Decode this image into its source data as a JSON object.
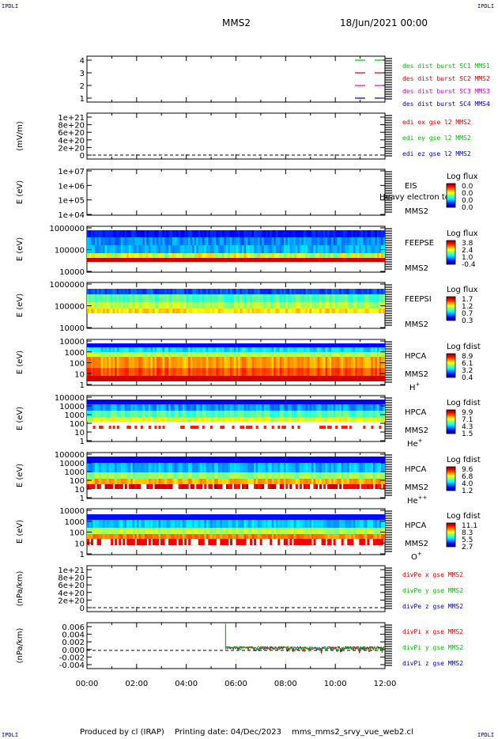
{
  "corner_tag": "IPDLI",
  "header": {
    "spacecraft": "MMS2",
    "date": "18/Jun/2021 00:00"
  },
  "footer": {
    "producer": "Produced by cl (IRAP)",
    "printing": "Printing date: 04/Dec/2023",
    "filename": "mms_mms2_srvy_vue_web2.cl"
  },
  "colors": {
    "red": "#e00000",
    "green": "#00c000",
    "blue": "#0000c0",
    "magenta": "#e000e0",
    "text_blue": "#0000aa"
  },
  "chart_data": [
    {
      "type": "line",
      "ylim": [
        0.5,
        4.5
      ],
      "ticks": [
        "1",
        "2",
        "3",
        "4"
      ],
      "series": [
        {
          "name": "des dist burst SC1 MMS1",
          "color": "#00c000",
          "y": 4
        },
        {
          "name": "des dist burst SC2 MMS2",
          "color": "#e00000",
          "y": 3
        },
        {
          "name": "des dist burst SC3 MMS3",
          "color": "#e000e0",
          "y": 2
        },
        {
          "name": "des dist burst SC4 MMS4",
          "color": "#0000c0",
          "y": 1
        }
      ]
    },
    {
      "type": "line",
      "ylabel": "(mV/m)",
      "ticks": [
        "0",
        "2e+20",
        "4e+20",
        "6e+20",
        "8e+20",
        "1e+21"
      ],
      "ylim": [
        -1e+20,
        1.05e+21
      ],
      "series": [
        {
          "name": "edi ex gse l2 MMS2",
          "color": "#e00000"
        },
        {
          "name": "edi ey gse l2 MMS2",
          "color": "#00c000"
        },
        {
          "name": "edi ez gse l2 MMS2",
          "color": "#0000c0"
        }
      ]
    },
    {
      "type": "heatmap",
      "ylabel": "E (eV)",
      "ticks": [
        "1e+04",
        "1e+05",
        "1e+06",
        "1e+07"
      ],
      "label": "EIS",
      "label_extra": "Heavy electron to",
      "sc": "MMS2",
      "colorbar": {
        "title": "Log flux",
        "ticks": [
          "0.0",
          "0.0",
          "0.0",
          "0.0"
        ]
      },
      "empty": true
    },
    {
      "type": "heatmap",
      "ylabel": "E (eV)",
      "ticks": [
        "10000",
        "100000",
        "1000000"
      ],
      "label": "FEEPSE",
      "sc": "MMS2",
      "colorbar": {
        "title": "Log flux",
        "ticks": [
          "3.8",
          "2.4",
          "1.0",
          "-0.4"
        ]
      },
      "style": "feepse"
    },
    {
      "type": "heatmap",
      "ylabel": "E (eV)",
      "ticks": [
        "10000",
        "100000",
        "1000000"
      ],
      "label": "FEEPSI",
      "sc": "MMS2",
      "colorbar": {
        "title": "Log flux",
        "ticks": [
          "1.7",
          "1.2",
          "0.7",
          "0.3"
        ]
      },
      "style": "feepsi"
    },
    {
      "type": "heatmap",
      "ylabel": "E (eV)",
      "ticks": [
        "1",
        "10",
        "100",
        "1000",
        "10000"
      ],
      "label": "HPCA",
      "sc": "MMS2",
      "species": "H",
      "species_sup": "+",
      "colorbar": {
        "title": "Log fdist",
        "ticks": [
          "8.9",
          "6.1",
          "3.2",
          "0.4"
        ]
      },
      "style": "hplus"
    },
    {
      "type": "heatmap",
      "ylabel": "E (eV)",
      "ticks": [
        "1",
        "10",
        "100",
        "1000",
        "10000",
        "100000"
      ],
      "label": "HPCA",
      "sc": "MMS2",
      "species": "He",
      "species_sup": "+",
      "colorbar": {
        "title": "Log fdist",
        "ticks": [
          "9.9",
          "7.1",
          "4.3",
          "1.5"
        ]
      },
      "style": "heplus"
    },
    {
      "type": "heatmap",
      "ylabel": "E (eV)",
      "ticks": [
        "1",
        "10",
        "100",
        "1000",
        "10000",
        "100000"
      ],
      "label": "HPCA",
      "sc": "MMS2",
      "species": "He",
      "species_sup": "++",
      "colorbar": {
        "title": "Log fdist",
        "ticks": [
          "9.6",
          "6.8",
          "4.0",
          "1.2"
        ]
      },
      "style": "heplusplus"
    },
    {
      "type": "heatmap",
      "ylabel": "E (eV)",
      "ticks": [
        "1",
        "10",
        "100",
        "1000",
        "10000"
      ],
      "label": "HPCA",
      "sc": "MMS2",
      "species": "O",
      "species_sup": "+",
      "colorbar": {
        "title": "Log fdist",
        "ticks": [
          "11.1",
          "8.3",
          "5.5",
          "2.7"
        ]
      },
      "style": "oplus"
    },
    {
      "type": "line",
      "ylabel": "(nPa/km)",
      "ticks": [
        "0",
        "2e+20",
        "4e+20",
        "6e+20",
        "8e+20",
        "1e+21"
      ],
      "series": [
        {
          "name": "divPe x gse MMS2",
          "color": "#e00000"
        },
        {
          "name": "divPe y gse MMS2",
          "color": "#00c000"
        },
        {
          "name": "divPe z gse MMS2",
          "color": "#0000c0"
        }
      ]
    },
    {
      "type": "line",
      "ylabel": "(nPa/km)",
      "ticks": [
        "-0.004",
        "-0.002",
        "0.000",
        "0.002",
        "0.004",
        "0.006"
      ],
      "ylim": [
        -0.0055,
        0.0068
      ],
      "series": [
        {
          "name": "divPi x gse MMS2",
          "color": "#e00000"
        },
        {
          "name": "divPi y gse MMS2",
          "color": "#00c000"
        },
        {
          "name": "divPi z gse MMS2",
          "color": "#0000c0"
        }
      ],
      "data_start": "05:35",
      "spike_value": 0.0065
    }
  ],
  "time_axis": {
    "ticks": [
      "00:00",
      "02:00",
      "04:00",
      "06:00",
      "08:00",
      "10:00",
      "12:00"
    ]
  }
}
